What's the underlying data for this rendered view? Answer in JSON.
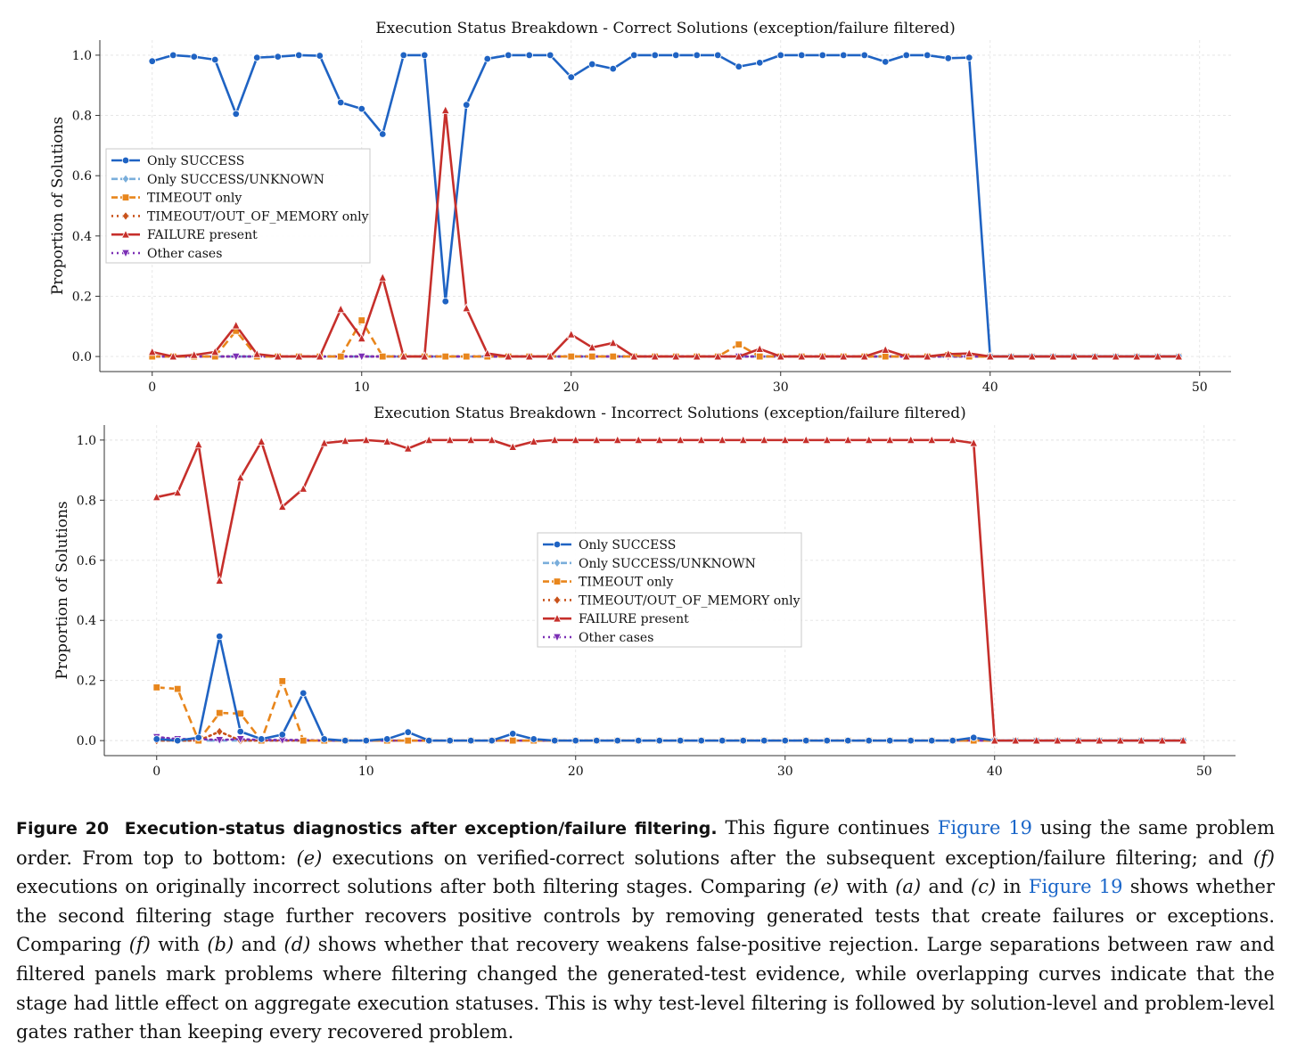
{
  "chart_data": [
    {
      "type": "line",
      "title": "Execution Status Breakdown - Correct Solutions (exception/failure filtered)",
      "xlabel": "",
      "ylabel": "Proportion of Solutions",
      "xlim": [
        -2.5,
        51.5
      ],
      "ylim": [
        -0.05,
        1.05
      ],
      "xticks": [
        0,
        10,
        20,
        30,
        40,
        50
      ],
      "yticks": [
        0.0,
        0.2,
        0.4,
        0.6,
        0.8,
        1.0
      ],
      "grid": true,
      "legend_position": "center-left",
      "x": [
        0,
        1,
        2,
        3,
        4,
        5,
        6,
        7,
        8,
        9,
        10,
        11,
        12,
        13,
        14,
        15,
        16,
        17,
        18,
        19,
        20,
        21,
        22,
        23,
        24,
        25,
        26,
        27,
        28,
        29,
        30,
        31,
        32,
        33,
        34,
        35,
        36,
        37,
        38,
        39,
        40,
        41,
        42,
        43,
        44,
        45,
        46,
        47,
        48,
        49
      ],
      "series": [
        {
          "name": "Only SUCCESS",
          "color": "#1f63c3",
          "dash": "solid",
          "marker": "circle",
          "values": [
            0.98,
            1.0,
            0.995,
            0.985,
            0.805,
            0.992,
            0.995,
            1.0,
            0.998,
            0.843,
            0.822,
            0.738,
            1.0,
            1.0,
            0.183,
            0.835,
            0.988,
            1.0,
            1.0,
            1.0,
            0.927,
            0.97,
            0.955,
            1.0,
            1.0,
            1.0,
            1.0,
            1.0,
            0.962,
            0.975,
            1.0,
            1.0,
            1.0,
            1.0,
            1.0,
            0.978,
            1.0,
            1.0,
            0.99,
            0.992,
            0,
            0,
            0,
            0,
            0,
            0,
            0,
            0,
            0,
            0
          ]
        },
        {
          "name": "Only SUCCESS/UNKNOWN",
          "color": "#7aaedb",
          "dash": "dashed",
          "marker": "diamond",
          "values": [
            0,
            0,
            0,
            0,
            0,
            0,
            0,
            0,
            0,
            0,
            0,
            0,
            0,
            0,
            0,
            0,
            0,
            0,
            0,
            0,
            0,
            0,
            0,
            0,
            0,
            0,
            0,
            0,
            0,
            0,
            0,
            0,
            0,
            0,
            0,
            0,
            0,
            0,
            0,
            0,
            0,
            0,
            0,
            0,
            0,
            0,
            0,
            0,
            0,
            0
          ]
        },
        {
          "name": "TIMEOUT only",
          "color": "#e8861c",
          "dash": "dashed",
          "marker": "square",
          "values": [
            0,
            0,
            0,
            0,
            0.085,
            0,
            0,
            0,
            0,
            0,
            0.12,
            0,
            0,
            0,
            0,
            0,
            0,
            0,
            0,
            0,
            0,
            0,
            0,
            0,
            0,
            0,
            0,
            0,
            0.04,
            0,
            0,
            0,
            0,
            0,
            0,
            0,
            0,
            0,
            0.005,
            0,
            0,
            0,
            0,
            0,
            0,
            0,
            0,
            0,
            0,
            0
          ]
        },
        {
          "name": "TIMEOUT/OUT_OF_MEMORY only",
          "color": "#c9521a",
          "dash": "dotted",
          "marker": "diamond",
          "values": [
            0,
            0,
            0,
            0,
            0,
            0,
            0,
            0,
            0,
            0,
            0,
            0,
            0,
            0,
            0,
            0,
            0,
            0,
            0,
            0,
            0,
            0,
            0,
            0,
            0,
            0,
            0,
            0,
            0,
            0,
            0,
            0,
            0,
            0,
            0,
            0,
            0,
            0,
            0,
            0,
            0,
            0,
            0,
            0,
            0,
            0,
            0,
            0,
            0,
            0
          ]
        },
        {
          "name": "FAILURE present",
          "color": "#c62f2b",
          "dash": "solid",
          "marker": "triangle-up",
          "values": [
            0.015,
            0,
            0.005,
            0.015,
            0.103,
            0.008,
            0,
            0,
            0,
            0.157,
            0.06,
            0.262,
            0,
            0,
            0.817,
            0.16,
            0.01,
            0,
            0,
            0,
            0.073,
            0.03,
            0.045,
            0,
            0,
            0,
            0,
            0,
            0,
            0.025,
            0,
            0,
            0,
            0,
            0,
            0.022,
            0,
            0,
            0.008,
            0.01,
            0,
            0,
            0,
            0,
            0,
            0,
            0,
            0,
            0,
            0
          ]
        },
        {
          "name": "Other cases",
          "color": "#7b2fb5",
          "dash": "dotted",
          "marker": "triangle-down",
          "values": [
            0,
            0,
            0,
            0,
            0,
            0,
            0,
            0,
            0,
            0,
            0,
            0,
            0,
            0,
            0,
            0,
            0,
            0,
            0,
            0,
            0,
            0,
            0,
            0,
            0,
            0,
            0,
            0,
            0,
            0,
            0,
            0,
            0,
            0,
            0,
            0,
            0,
            0,
            0,
            0,
            0,
            0,
            0,
            0,
            0,
            0,
            0,
            0,
            0,
            0
          ]
        }
      ]
    },
    {
      "type": "line",
      "title": "Execution Status Breakdown - Incorrect Solutions (exception/failure filtered)",
      "xlabel": "",
      "ylabel": "Proportion of Solutions",
      "xlim": [
        -2.5,
        51.5
      ],
      "ylim": [
        -0.05,
        1.05
      ],
      "xticks": [
        0,
        10,
        20,
        30,
        40,
        50
      ],
      "yticks": [
        0.0,
        0.2,
        0.4,
        0.6,
        0.8,
        1.0
      ],
      "grid": true,
      "legend_position": "center",
      "x": [
        0,
        1,
        2,
        3,
        4,
        5,
        6,
        7,
        8,
        9,
        10,
        11,
        12,
        13,
        14,
        15,
        16,
        17,
        18,
        19,
        20,
        21,
        22,
        23,
        24,
        25,
        26,
        27,
        28,
        29,
        30,
        31,
        32,
        33,
        34,
        35,
        36,
        37,
        38,
        39,
        40,
        41,
        42,
        43,
        44,
        45,
        46,
        47,
        48,
        49
      ],
      "series": [
        {
          "name": "Only SUCCESS",
          "color": "#1f63c3",
          "dash": "solid",
          "marker": "circle",
          "values": [
            0.005,
            0,
            0.01,
            0.347,
            0.03,
            0.005,
            0.02,
            0.158,
            0.005,
            0,
            0,
            0.005,
            0.028,
            0,
            0,
            0,
            0,
            0.023,
            0.005,
            0,
            0,
            0,
            0,
            0,
            0,
            0,
            0,
            0,
            0,
            0,
            0,
            0,
            0,
            0,
            0,
            0,
            0,
            0,
            0,
            0.01,
            0,
            0,
            0,
            0,
            0,
            0,
            0,
            0,
            0,
            0
          ]
        },
        {
          "name": "Only SUCCESS/UNKNOWN",
          "color": "#7aaedb",
          "dash": "dashed",
          "marker": "diamond",
          "values": [
            0,
            0,
            0,
            0,
            0,
            0,
            0,
            0,
            0,
            0,
            0,
            0,
            0,
            0,
            0,
            0,
            0,
            0,
            0,
            0,
            0,
            0,
            0,
            0,
            0,
            0,
            0,
            0,
            0,
            0,
            0,
            0,
            0,
            0,
            0,
            0,
            0,
            0,
            0,
            0.008,
            0,
            0,
            0,
            0,
            0,
            0,
            0,
            0,
            0,
            0
          ]
        },
        {
          "name": "TIMEOUT only",
          "color": "#e8861c",
          "dash": "dashed",
          "marker": "square",
          "values": [
            0.177,
            0.172,
            0,
            0.092,
            0.09,
            0,
            0.198,
            0,
            0,
            0,
            0,
            0,
            0,
            0,
            0,
            0,
            0,
            0,
            0,
            0,
            0,
            0,
            0,
            0,
            0,
            0,
            0,
            0,
            0,
            0,
            0,
            0,
            0,
            0,
            0,
            0,
            0,
            0,
            0,
            0,
            0,
            0,
            0,
            0,
            0,
            0,
            0,
            0,
            0,
            0
          ]
        },
        {
          "name": "TIMEOUT/OUT_OF_MEMORY only",
          "color": "#c9521a",
          "dash": "dotted",
          "marker": "diamond",
          "values": [
            0,
            0,
            0,
            0.03,
            0,
            0,
            0,
            0,
            0,
            0,
            0,
            0,
            0,
            0,
            0,
            0,
            0,
            0,
            0,
            0,
            0,
            0,
            0,
            0,
            0,
            0,
            0,
            0,
            0,
            0,
            0,
            0,
            0,
            0,
            0,
            0,
            0,
            0,
            0,
            0,
            0,
            0,
            0,
            0,
            0,
            0,
            0,
            0,
            0,
            0
          ]
        },
        {
          "name": "FAILURE present",
          "color": "#c62f2b",
          "dash": "solid",
          "marker": "triangle-up",
          "values": [
            0.81,
            0.825,
            0.985,
            0.532,
            0.875,
            0.995,
            0.778,
            0.838,
            0.99,
            0.997,
            1.0,
            0.995,
            0.972,
            1.0,
            1.0,
            1.0,
            1.0,
            0.977,
            0.995,
            1.0,
            1.0,
            1.0,
            1.0,
            1.0,
            1.0,
            1.0,
            1.0,
            1.0,
            1.0,
            1.0,
            1.0,
            1.0,
            1.0,
            1.0,
            1.0,
            1.0,
            1.0,
            1.0,
            1.0,
            0.99,
            0,
            0,
            0,
            0,
            0,
            0,
            0,
            0,
            0,
            0
          ]
        },
        {
          "name": "Other cases",
          "color": "#7b2fb5",
          "dash": "dotted",
          "marker": "triangle-down",
          "values": [
            0.012,
            0.005,
            0.005,
            0.002,
            0.005,
            0.002,
            0.002,
            0.002,
            0,
            0,
            0,
            0,
            0,
            0,
            0,
            0,
            0,
            0,
            0,
            0,
            0,
            0,
            0,
            0,
            0,
            0,
            0,
            0,
            0,
            0,
            0,
            0,
            0,
            0,
            0,
            0,
            0,
            0,
            0,
            0,
            0,
            0,
            0,
            0,
            0,
            0,
            0,
            0,
            0,
            0
          ]
        }
      ]
    }
  ],
  "caption": {
    "label": "Figure 20",
    "bold_title": "Execution-status diagnostics after exception/failure filtering.",
    "t1": " This figure continues ",
    "ref1": "Figure 19",
    "t2": " using the same problem order. From top to bottom: ",
    "e1": "(e)",
    "t3": " executions on verified-correct solutions after the subsequent exception/failure filtering; and ",
    "f1": "(f)",
    "t4": " executions on originally incorrect solutions after both filtering stages. Comparing ",
    "e2": "(e)",
    "t5": " with ",
    "a1": "(a)",
    "t6": " and ",
    "c1": "(c)",
    "t7": " in ",
    "ref2": "Figure 19",
    "t8": " shows whether the second filtering stage further recovers positive controls by removing generated tests that create failures or exceptions. Comparing ",
    "f2": "(f)",
    "t9": " with ",
    "b1": "(b)",
    "t10": " and ",
    "d1": "(d)",
    "t11": " shows whether that recovery weakens false-positive rejection. Large separations between raw and filtered panels mark problems where filtering changed the generated-test evidence, while overlapping curves indicate that the stage had little effect on aggregate execution statuses. This is why test-level filtering is followed by solution-level and problem-level gates rather than keeping every recovered problem."
  }
}
